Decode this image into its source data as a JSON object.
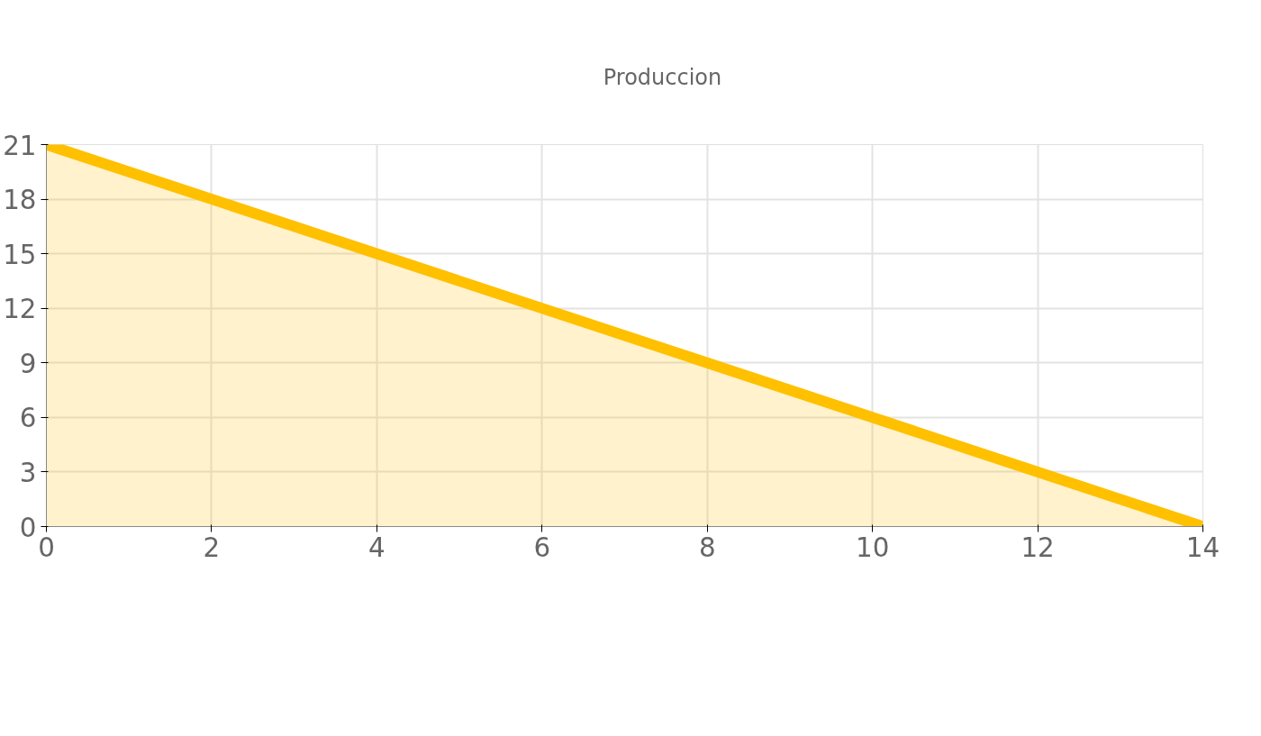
{
  "chart_data": {
    "type": "area",
    "x": [
      0,
      14
    ],
    "series": [
      {
        "name": "Produccion",
        "color": "#ffc000",
        "values": [
          21,
          0
        ]
      }
    ],
    "xlim": [
      0,
      14
    ],
    "ylim": [
      0,
      21
    ],
    "xticks": [
      0,
      2,
      4,
      6,
      8,
      10,
      12,
      14
    ],
    "yticks": [
      0,
      3,
      6,
      9,
      12,
      15,
      18,
      21
    ],
    "grid": true,
    "legend": "top",
    "marker": "none",
    "line_style": "solid"
  }
}
